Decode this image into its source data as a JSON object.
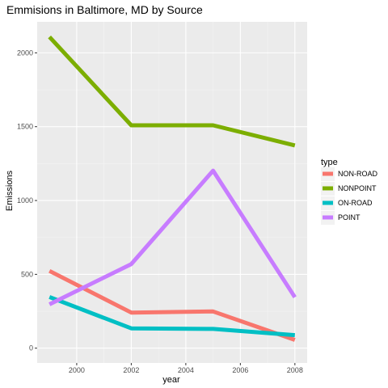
{
  "chart_data": {
    "type": "line",
    "title": "Emmisions in Baltimore, MD by Source",
    "xlabel": "year",
    "ylabel": "Emissions",
    "x": [
      1999,
      2002,
      2005,
      2008
    ],
    "xlim": [
      1998.55,
      2008.45
    ],
    "ylim": [
      -100,
      2210
    ],
    "x_ticks": [
      2000,
      2002,
      2004,
      2006,
      2008
    ],
    "y_ticks": [
      0,
      500,
      1000,
      1500,
      2000
    ],
    "grid": true,
    "legend": {
      "title": "type",
      "placement": "right"
    },
    "series": [
      {
        "name": "NON-ROAD",
        "values": [
          522.9,
          240.8,
          248.9,
          55.8
        ],
        "color": "#F8766D"
      },
      {
        "name": "NONPOINT",
        "values": [
          2107.6,
          1509.5,
          1509.5,
          1373.2
        ],
        "color": "#7CAE00"
      },
      {
        "name": "ON-ROAD",
        "values": [
          346.8,
          134.3,
          130.4,
          88.3
        ],
        "color": "#00BFC4"
      },
      {
        "name": "POINT",
        "values": [
          296.8,
          569.3,
          1202.5,
          344.98
        ],
        "color": "#C77CFF"
      }
    ]
  }
}
